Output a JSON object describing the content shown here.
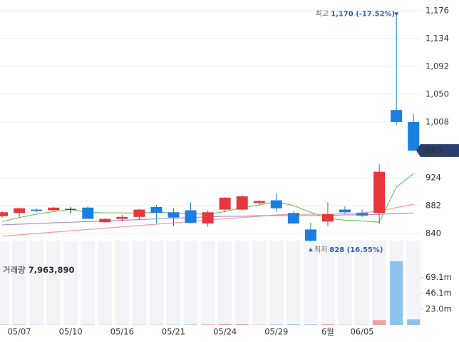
{
  "chart_data": [
    {
      "type": "candlestick",
      "categories": [
        null,
        "05/07",
        null,
        null,
        "05/10",
        null,
        null,
        "05/16",
        null,
        null,
        "05/21",
        null,
        null,
        "05/24",
        null,
        null,
        "05/29",
        null,
        null,
        "6월",
        null,
        "06/05",
        null,
        null,
        null
      ],
      "open": [
        866,
        871,
        876,
        875,
        877,
        879,
        857,
        862,
        865,
        880,
        872,
        875,
        855,
        876,
        876,
        886,
        890,
        871,
        846,
        858,
        876,
        871,
        871,
        1026,
        1008
      ],
      "high": [
        874,
        879,
        878,
        880,
        880,
        881,
        863,
        868,
        877,
        883,
        878,
        887,
        875,
        895,
        898,
        890,
        901,
        873,
        856,
        887,
        881,
        876,
        945,
        1170,
        1020
      ],
      "low": [
        864,
        864,
        872,
        874,
        870,
        862,
        856,
        858,
        860,
        855,
        851,
        855,
        850,
        872,
        875,
        883,
        873,
        855,
        828,
        851,
        870,
        865,
        854,
        1004,
        964
      ],
      "close": [
        872,
        878,
        874,
        879,
        877,
        862,
        862,
        865,
        876,
        871,
        864,
        856,
        872,
        894,
        896,
        889,
        878,
        855,
        829,
        869,
        872,
        867,
        933,
        1008,
        965
      ],
      "up_color": "#e8363b",
      "down_color": "#1a7fe0",
      "flat_color": "#222",
      "lines": [
        {
          "color": "#6cc56a",
          "values": [
            858,
            864,
            869,
            873,
            876,
            872,
            871,
            871,
            871,
            872,
            871,
            870,
            869,
            873,
            879,
            883,
            888,
            882,
            872,
            863,
            860,
            859,
            857,
            910,
            930
          ]
        },
        {
          "color": "#f09a9a",
          "values": [
            836,
            838,
            840,
            842,
            844,
            846,
            848,
            850,
            852,
            854,
            856,
            858,
            860,
            862,
            864,
            866,
            868,
            869,
            869,
            869,
            870,
            871,
            874,
            879,
            884
          ]
        },
        {
          "color": "#b58ad6",
          "values": [
            853,
            854,
            855,
            856,
            857,
            858,
            859,
            860,
            861,
            862,
            863,
            864,
            865,
            866,
            866,
            867,
            867,
            867,
            867,
            867,
            868,
            868,
            869,
            870,
            871
          ]
        }
      ],
      "ylim": [
        826,
        1192
      ],
      "yticks": [
        {
          "value": 1176,
          "label": "1,176"
        },
        {
          "value": 1134,
          "label": "1,134"
        },
        {
          "value": 1092,
          "label": "1,092"
        },
        {
          "value": 1050,
          "label": "1,050"
        },
        {
          "value": 1008,
          "label": "1,008"
        },
        924,
        882,
        840
      ],
      "grid": true,
      "current_badge_color": "#2c3e6b",
      "annotations": {
        "high_label": "최고",
        "high_text": "1,170 (-17.52%)",
        "low_label": "최저",
        "low_text": "828 (16.55%)"
      }
    },
    {
      "type": "bar",
      "title": "거래량",
      "title_value": "7,963,890",
      "values": [
        0.4,
        0.5,
        0.2,
        0.2,
        0.1,
        0.4,
        0.2,
        0.2,
        0.3,
        0.3,
        0.3,
        0.5,
        0.6,
        1.2,
        0.9,
        0.3,
        0.6,
        0.8,
        0.7,
        0.9,
        0.3,
        0.3,
        7.0,
        93.0,
        8.0
      ],
      "up_color": "#f0a0a3",
      "down_color": "#8ec3ee",
      "ylim": [
        0,
        125
      ],
      "yticks": [
        {
          "value": 69.1,
          "label": "69.1m"
        },
        {
          "value": 46.1,
          "label": "46.1m"
        },
        {
          "value": 23.0,
          "label": "23.0m"
        }
      ]
    }
  ]
}
